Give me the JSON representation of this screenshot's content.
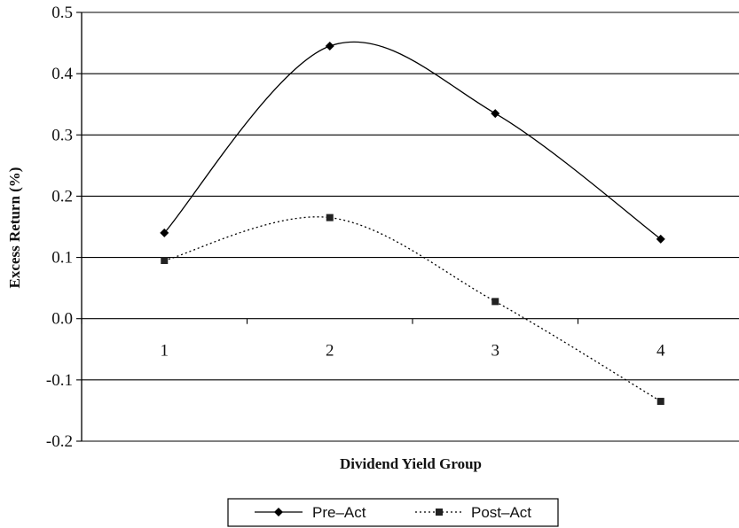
{
  "chart_data": {
    "type": "line",
    "title": "",
    "xlabel": "Dividend Yield Group",
    "ylabel": "Excess Return (%)",
    "categories": [
      "1",
      "2",
      "3",
      "4"
    ],
    "ylim": [
      -0.2,
      0.5
    ],
    "yticks": [
      "0.5",
      "0.4",
      "0.3",
      "0.2",
      "0.1",
      "0.0",
      "-0.1",
      "-0.2"
    ],
    "grid": true,
    "legend_position": "bottom",
    "series": [
      {
        "name": "Pre-Act",
        "values": [
          0.14,
          0.445,
          0.335,
          0.13
        ],
        "color": "#000000",
        "line": "solid",
        "marker": "diamond"
      },
      {
        "name": "Post-Act",
        "values": [
          0.095,
          0.165,
          0.028,
          -0.135
        ],
        "color": "#000000",
        "line": "dotted",
        "marker": "square"
      }
    ]
  },
  "legend": {
    "pre_label": "Pre–Act",
    "post_label": "Post–Act"
  }
}
